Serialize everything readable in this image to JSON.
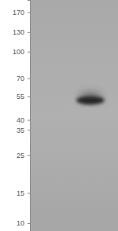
{
  "chart_data": {
    "type": "blot",
    "categories": [
      null,
      null
    ],
    "values": [
      null,
      52
    ],
    "log": "y",
    "ylim": [
      200,
      9
    ],
    "yticks": [
      170,
      130,
      100,
      70,
      55,
      40,
      35,
      25,
      15,
      10
    ],
    "tick_labels": "y",
    "color": "#262626"
  }
}
